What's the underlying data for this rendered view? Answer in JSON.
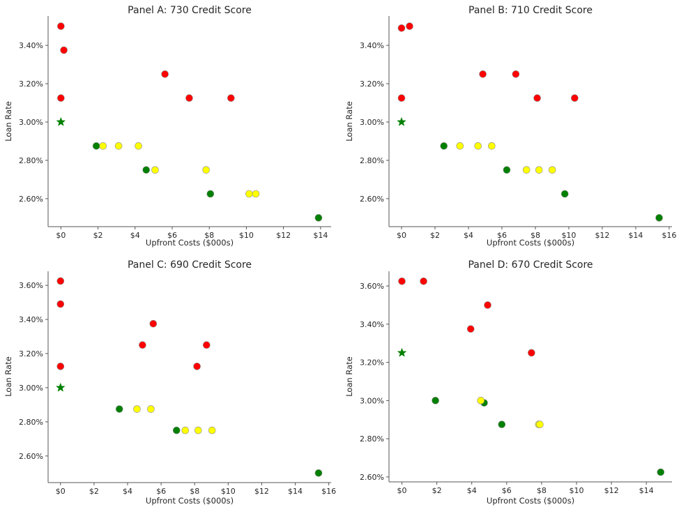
{
  "chart_data": [
    {
      "type": "scatter",
      "title": "Panel A: 730 Credit Score",
      "xlabel": "Upfront Costs ($000s)",
      "ylabel": "Loan Rate",
      "xlim": [
        -0.69,
        14.57
      ],
      "ylim": [
        2.454,
        3.553
      ],
      "xticks": [
        0,
        2,
        4,
        6,
        8,
        10,
        12,
        14
      ],
      "xtick_labels": [
        "$0",
        "$2",
        "$4",
        "$6",
        "$8",
        "$10",
        "$12",
        "$14"
      ],
      "yticks": [
        2.6,
        2.8,
        3.0,
        3.2,
        3.4
      ],
      "ytick_labels": [
        "2.60%",
        "2.80%",
        "3.00%",
        "3.20%",
        "3.40%"
      ],
      "grid": false,
      "points": [
        {
          "x": 0,
          "y": 3.5,
          "color": "red",
          "marker": "circle"
        },
        {
          "x": 0.16,
          "y": 3.375,
          "color": "red",
          "marker": "circle"
        },
        {
          "x": 5.61,
          "y": 3.25,
          "color": "red",
          "marker": "circle"
        },
        {
          "x": 0,
          "y": 3.125,
          "color": "red",
          "marker": "circle"
        },
        {
          "x": 6.92,
          "y": 3.125,
          "color": "red",
          "marker": "circle"
        },
        {
          "x": 9.17,
          "y": 3.125,
          "color": "red",
          "marker": "circle"
        },
        {
          "x": 0,
          "y": 3.0,
          "color": "green",
          "marker": "star"
        },
        {
          "x": 1.91,
          "y": 2.875,
          "color": "green",
          "marker": "circle"
        },
        {
          "x": 2.27,
          "y": 2.875,
          "color": "yellow",
          "marker": "circle"
        },
        {
          "x": 3.11,
          "y": 2.875,
          "color": "yellow",
          "marker": "circle"
        },
        {
          "x": 4.18,
          "y": 2.875,
          "color": "yellow",
          "marker": "circle"
        },
        {
          "x": 4.6,
          "y": 2.75,
          "color": "green",
          "marker": "circle"
        },
        {
          "x": 5.08,
          "y": 2.75,
          "color": "yellow",
          "marker": "circle"
        },
        {
          "x": 7.83,
          "y": 2.75,
          "color": "yellow",
          "marker": "circle"
        },
        {
          "x": 8.06,
          "y": 2.625,
          "color": "green",
          "marker": "circle"
        },
        {
          "x": 10.15,
          "y": 2.625,
          "color": "yellow",
          "marker": "circle"
        },
        {
          "x": 10.51,
          "y": 2.625,
          "color": "yellow",
          "marker": "circle"
        },
        {
          "x": 13.89,
          "y": 2.5,
          "color": "green",
          "marker": "circle"
        }
      ]
    },
    {
      "type": "scatter",
      "title": "Panel B: 710 Credit Score",
      "xlabel": "Upfront Costs ($000s)",
      "ylabel": "Loan Rate",
      "xlim": [
        -0.75,
        16.17
      ],
      "ylim": [
        2.454,
        3.553
      ],
      "xticks": [
        0,
        2,
        4,
        6,
        8,
        10,
        12,
        14,
        16
      ],
      "xtick_labels": [
        "$0",
        "$2",
        "$4",
        "$6",
        "$8",
        "$10",
        "$12",
        "$14",
        "$16"
      ],
      "yticks": [
        2.6,
        2.8,
        3.0,
        3.2,
        3.4
      ],
      "ytick_labels": [
        "2.60%",
        "2.80%",
        "3.00%",
        "3.20%",
        "3.40%"
      ],
      "grid": false,
      "points": [
        {
          "x": 0,
          "y": 3.49,
          "color": "red",
          "marker": "circle"
        },
        {
          "x": 0.48,
          "y": 3.5,
          "color": "red",
          "marker": "circle"
        },
        {
          "x": 4.86,
          "y": 3.25,
          "color": "red",
          "marker": "circle"
        },
        {
          "x": 6.83,
          "y": 3.25,
          "color": "red",
          "marker": "circle"
        },
        {
          "x": 0,
          "y": 3.125,
          "color": "red",
          "marker": "circle"
        },
        {
          "x": 8.11,
          "y": 3.125,
          "color": "red",
          "marker": "circle"
        },
        {
          "x": 10.35,
          "y": 3.125,
          "color": "red",
          "marker": "circle"
        },
        {
          "x": 0,
          "y": 3.0,
          "color": "green",
          "marker": "star"
        },
        {
          "x": 2.53,
          "y": 2.875,
          "color": "green",
          "marker": "circle"
        },
        {
          "x": 3.49,
          "y": 2.875,
          "color": "yellow",
          "marker": "circle"
        },
        {
          "x": 4.57,
          "y": 2.875,
          "color": "yellow",
          "marker": "circle"
        },
        {
          "x": 5.39,
          "y": 2.875,
          "color": "yellow",
          "marker": "circle"
        },
        {
          "x": 6.29,
          "y": 2.75,
          "color": "green",
          "marker": "circle"
        },
        {
          "x": 7.47,
          "y": 2.75,
          "color": "yellow",
          "marker": "circle"
        },
        {
          "x": 8.22,
          "y": 2.75,
          "color": "yellow",
          "marker": "circle"
        },
        {
          "x": 9.01,
          "y": 2.75,
          "color": "yellow",
          "marker": "circle"
        },
        {
          "x": 9.76,
          "y": 2.625,
          "color": "green",
          "marker": "circle"
        },
        {
          "x": 15.4,
          "y": 2.5,
          "color": "green",
          "marker": "circle"
        }
      ]
    },
    {
      "type": "scatter",
      "title": "Panel C: 690 Credit Score",
      "xlabel": "Upfront Costs ($000s)",
      "ylabel": "Loan Rate",
      "xlim": [
        -0.74,
        16.14
      ],
      "ylim": [
        2.444,
        3.682
      ],
      "xticks": [
        0,
        2,
        4,
        6,
        8,
        10,
        12,
        14,
        16
      ],
      "xtick_labels": [
        "$0",
        "$2",
        "$4",
        "$6",
        "$8",
        "$10",
        "$12",
        "$14",
        "$16"
      ],
      "yticks": [
        2.6,
        2.8,
        3.0,
        3.2,
        3.4,
        3.6
      ],
      "ytick_labels": [
        "2.60%",
        "2.80%",
        "3.00%",
        "3.20%",
        "3.40%",
        "3.60%"
      ],
      "grid": false,
      "points": [
        {
          "x": 0,
          "y": 3.625,
          "color": "red",
          "marker": "circle"
        },
        {
          "x": 0,
          "y": 3.49,
          "color": "red",
          "marker": "circle"
        },
        {
          "x": 5.53,
          "y": 3.375,
          "color": "red",
          "marker": "circle"
        },
        {
          "x": 4.89,
          "y": 3.25,
          "color": "red",
          "marker": "circle"
        },
        {
          "x": 8.71,
          "y": 3.25,
          "color": "red",
          "marker": "circle"
        },
        {
          "x": 0,
          "y": 3.125,
          "color": "red",
          "marker": "circle"
        },
        {
          "x": 8.14,
          "y": 3.125,
          "color": "red",
          "marker": "circle"
        },
        {
          "x": 0,
          "y": 3.0,
          "color": "green",
          "marker": "star"
        },
        {
          "x": 3.51,
          "y": 2.875,
          "color": "green",
          "marker": "circle"
        },
        {
          "x": 4.56,
          "y": 2.875,
          "color": "yellow",
          "marker": "circle"
        },
        {
          "x": 5.39,
          "y": 2.875,
          "color": "yellow",
          "marker": "circle"
        },
        {
          "x": 6.92,
          "y": 2.75,
          "color": "green",
          "marker": "circle"
        },
        {
          "x": 7.44,
          "y": 2.75,
          "color": "yellow",
          "marker": "circle"
        },
        {
          "x": 8.21,
          "y": 2.75,
          "color": "yellow",
          "marker": "circle"
        },
        {
          "x": 9.04,
          "y": 2.75,
          "color": "yellow",
          "marker": "circle"
        },
        {
          "x": 15.39,
          "y": 2.5,
          "color": "green",
          "marker": "circle"
        }
      ]
    },
    {
      "type": "scatter",
      "title": "Panel D: 670 Credit Score",
      "xlabel": "Upfront Costs ($000s)",
      "ylabel": "Loan Rate",
      "xlim": [
        -0.74,
        15.47
      ],
      "ylim": [
        2.574,
        3.677
      ],
      "xticks": [
        0,
        2,
        4,
        6,
        8,
        10,
        12,
        14
      ],
      "xtick_labels": [
        "$0",
        "$2",
        "$4",
        "$6",
        "$8",
        "$10",
        "$12",
        "$14"
      ],
      "yticks": [
        2.6,
        2.8,
        3.0,
        3.2,
        3.4,
        3.6
      ],
      "ytick_labels": [
        "2.60%",
        "2.80%",
        "3.00%",
        "3.20%",
        "3.40%",
        "3.60%"
      ],
      "grid": false,
      "points": [
        {
          "x": 0,
          "y": 3.625,
          "color": "red",
          "marker": "circle"
        },
        {
          "x": 1.24,
          "y": 3.625,
          "color": "red",
          "marker": "circle"
        },
        {
          "x": 4.91,
          "y": 3.5,
          "color": "red",
          "marker": "circle"
        },
        {
          "x": 3.94,
          "y": 3.375,
          "color": "red",
          "marker": "circle"
        },
        {
          "x": 7.42,
          "y": 3.25,
          "color": "red",
          "marker": "circle"
        },
        {
          "x": 0,
          "y": 3.25,
          "color": "green",
          "marker": "star"
        },
        {
          "x": 1.92,
          "y": 3.0,
          "color": "green",
          "marker": "circle"
        },
        {
          "x": 4.71,
          "y": 2.988,
          "color": "green",
          "marker": "circle"
        },
        {
          "x": 4.52,
          "y": 3.0,
          "color": "yellow",
          "marker": "circle"
        },
        {
          "x": 5.72,
          "y": 2.875,
          "color": "green",
          "marker": "circle"
        },
        {
          "x": 7.84,
          "y": 2.875,
          "color": "yellow",
          "marker": "circle"
        },
        {
          "x": 7.9,
          "y": 2.875,
          "color": "yellow",
          "marker": "circle"
        },
        {
          "x": 14.82,
          "y": 2.625,
          "color": "green",
          "marker": "circle"
        }
      ]
    }
  ],
  "colors": {
    "red": "#ff0000",
    "green": "#008000",
    "yellow": "#ffff00",
    "marker_edge": "#8a8a8a",
    "text": "#262626",
    "spine": "#555555"
  }
}
